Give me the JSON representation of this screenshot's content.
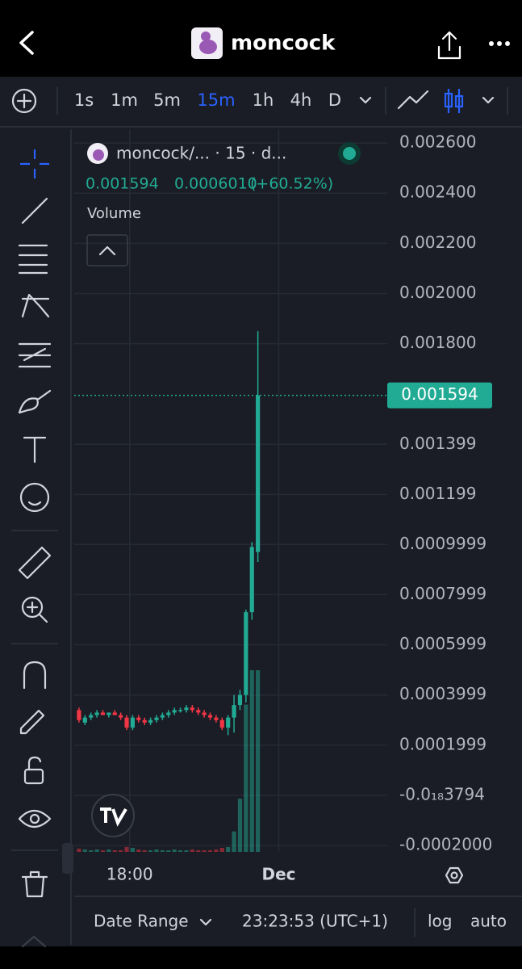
{
  "header": {
    "title": "moncock"
  },
  "toolbar": {
    "intervals": [
      "1s",
      "1m",
      "5m",
      "15m",
      "1h",
      "4h",
      "D"
    ],
    "active_interval": 3
  },
  "chart_data": {
    "type": "candlestick",
    "title": "moncock/... · 15 · d...",
    "legend_values": [
      0.001594,
      0.000601,
      60.52
    ],
    "legend_value_labels": [
      "0.001594",
      "0.0006010",
      "(+60.52%)"
    ],
    "volume_label": "Volume",
    "last_price": 0.001594,
    "up_color": "#22ab94",
    "down_color": "#f23645",
    "open": [
      0.00034,
      0.00029,
      0.00031,
      0.00032,
      0.00033,
      0.00032,
      0.00033,
      0.00032,
      0.00031,
      0.00027,
      0.00031,
      0.0003,
      0.00029,
      0.0003,
      0.00031,
      0.00032,
      0.00033,
      0.00034,
      0.00034,
      0.00035,
      0.00034,
      0.00033,
      0.00032,
      0.00031,
      0.0003,
      0.00027,
      0.00031,
      0.00036,
      0.0004,
      0.00073,
      0.00097
    ],
    "high": [
      0.00035,
      0.00032,
      0.00033,
      0.00034,
      0.00034,
      0.00033,
      0.00034,
      0.00033,
      0.00032,
      0.00032,
      0.00032,
      0.00031,
      0.00031,
      0.00032,
      0.00033,
      0.00034,
      0.00035,
      0.00035,
      0.00036,
      0.00036,
      0.00035,
      0.00034,
      0.00033,
      0.00032,
      0.00031,
      0.00032,
      0.0004,
      0.00042,
      0.00074,
      0.00101,
      0.00185
    ],
    "low": [
      0.00029,
      0.00028,
      0.0003,
      0.00031,
      0.00032,
      0.00031,
      0.00032,
      0.0003,
      0.00026,
      0.00026,
      0.00029,
      0.00028,
      0.00028,
      0.00029,
      0.0003,
      0.00031,
      0.00032,
      0.00033,
      0.00033,
      0.00033,
      0.00032,
      0.00031,
      0.0003,
      0.00029,
      0.00026,
      0.00024,
      0.00025,
      0.00034,
      0.00037,
      0.0007,
      0.00093
    ],
    "close": [
      0.0003,
      0.00031,
      0.00032,
      0.00033,
      0.00032,
      0.00033,
      0.00032,
      0.00031,
      0.00027,
      0.00031,
      0.0003,
      0.00029,
      0.0003,
      0.00031,
      0.00032,
      0.00033,
      0.00034,
      0.00034,
      0.00035,
      0.00034,
      0.00033,
      0.00032,
      0.00031,
      0.0003,
      0.00027,
      0.00031,
      0.00036,
      0.0004,
      0.00073,
      0.00099,
      0.001594
    ],
    "volume": [
      4,
      3,
      2,
      3,
      2,
      3,
      2,
      2,
      6,
      5,
      3,
      2,
      2,
      3,
      2,
      2,
      3,
      2,
      2,
      3,
      2,
      2,
      2,
      3,
      5,
      6,
      25,
      65,
      180,
      222,
      222
    ],
    "xlim": [
      -0.8,
      51.7
    ],
    "xticks": [
      {
        "value": 8.5,
        "label": "18:00"
      },
      {
        "value": 33.5,
        "label": "Dec"
      }
    ],
    "ylim": [
      -0.0002254,
      0.002655
    ],
    "yticks": [
      {
        "value": 0.0026,
        "label": "0.002600"
      },
      {
        "value": 0.0024,
        "label": "0.002400"
      },
      {
        "value": 0.0022,
        "label": "0.002200"
      },
      {
        "value": 0.002,
        "label": "0.002000"
      },
      {
        "value": 0.0018,
        "label": "0.001800"
      },
      0.001399,
      {
        "value": 0.001199,
        "label": "0.001199"
      },
      0.0009999,
      0.0007999,
      0.0005999,
      0.0003999,
      0.0001999,
      {
        "value": -3.794e-19,
        "label": "-0.0₁₈3794"
      },
      {
        "value": -0.0002,
        "label": "-0.0002000"
      }
    ],
    "grid": true
  },
  "footer": {
    "date_range": "Date Range",
    "time": "23:23:53 (UTC+1)",
    "log": "log",
    "auto": "auto"
  }
}
